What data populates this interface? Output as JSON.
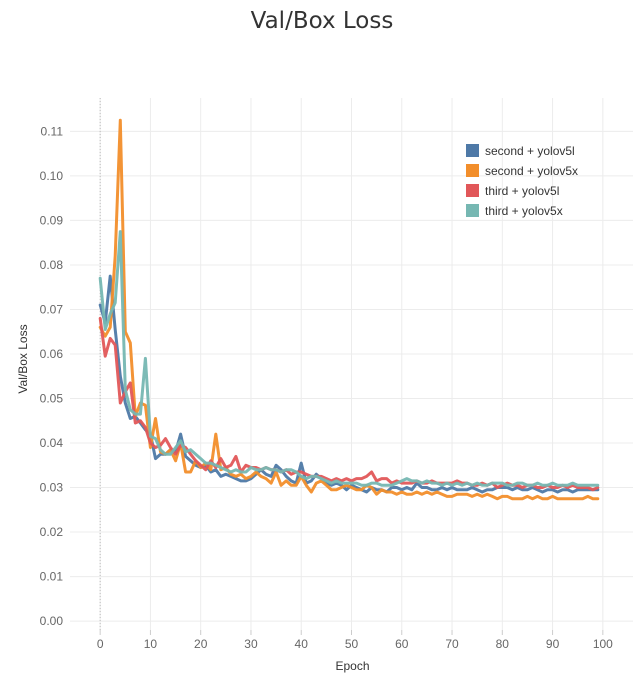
{
  "title": "Val/Box Loss",
  "chart_data": {
    "type": "line",
    "title": "Val/Box Loss",
    "xlabel": "Epoch",
    "ylabel": "Val/Box Loss",
    "xlim": [
      -6,
      106
    ],
    "ylim": [
      -0.002,
      0.1175
    ],
    "x_ticks": [
      0,
      10,
      20,
      30,
      40,
      50,
      60,
      70,
      80,
      90,
      100
    ],
    "y_ticks": [
      0.0,
      0.01,
      0.02,
      0.03,
      0.04,
      0.05,
      0.06,
      0.07,
      0.08,
      0.09,
      0.1,
      0.11
    ],
    "grid": true,
    "legend_position": "top-right",
    "series": [
      {
        "name": "second + yolov5l",
        "color": "#4e79a7",
        "x": [
          0,
          1,
          2,
          3,
          4,
          5,
          6,
          7,
          8,
          9,
          10,
          11,
          12,
          13,
          14,
          15,
          16,
          17,
          18,
          19,
          20,
          21,
          22,
          23,
          24,
          25,
          26,
          27,
          28,
          29,
          30,
          31,
          32,
          33,
          34,
          35,
          36,
          37,
          38,
          39,
          40,
          41,
          42,
          43,
          44,
          45,
          46,
          47,
          48,
          49,
          50,
          51,
          52,
          53,
          54,
          55,
          56,
          57,
          58,
          59,
          60,
          61,
          62,
          63,
          64,
          65,
          66,
          67,
          68,
          69,
          70,
          71,
          72,
          73,
          74,
          75,
          76,
          77,
          78,
          79,
          80,
          81,
          82,
          83,
          84,
          85,
          86,
          87,
          88,
          89,
          90,
          91,
          92,
          93,
          94,
          95,
          96,
          97,
          98,
          99
        ],
        "values": [
          0.071,
          0.067,
          0.0775,
          0.0655,
          0.055,
          0.049,
          0.0455,
          0.046,
          0.0445,
          0.043,
          0.042,
          0.0365,
          0.0375,
          0.0375,
          0.0385,
          0.038,
          0.042,
          0.037,
          0.036,
          0.035,
          0.0345,
          0.035,
          0.0335,
          0.034,
          0.0325,
          0.033,
          0.0325,
          0.032,
          0.0315,
          0.0315,
          0.032,
          0.033,
          0.034,
          0.033,
          0.0325,
          0.035,
          0.034,
          0.0325,
          0.0315,
          0.031,
          0.0355,
          0.031,
          0.0315,
          0.033,
          0.032,
          0.031,
          0.0305,
          0.031,
          0.0305,
          0.0295,
          0.0305,
          0.03,
          0.0295,
          0.029,
          0.03,
          0.0295,
          0.0295,
          0.029,
          0.03,
          0.03,
          0.0295,
          0.03,
          0.0295,
          0.031,
          0.03,
          0.03,
          0.0295,
          0.0295,
          0.03,
          0.0295,
          0.03,
          0.0295,
          0.0295,
          0.0295,
          0.03,
          0.0295,
          0.029,
          0.0295,
          0.0295,
          0.03,
          0.03,
          0.03,
          0.0295,
          0.03,
          0.0295,
          0.0295,
          0.03,
          0.0295,
          0.029,
          0.0295,
          0.0295,
          0.029,
          0.0295,
          0.0295,
          0.029,
          0.0295,
          0.0295,
          0.0295,
          0.0295,
          0.0295
        ]
      },
      {
        "name": "second + yolov5x",
        "color": "#f28e2b",
        "x": [
          0,
          1,
          2,
          3,
          4,
          5,
          6,
          7,
          8,
          9,
          10,
          11,
          12,
          13,
          14,
          15,
          16,
          17,
          18,
          19,
          20,
          21,
          22,
          23,
          24,
          25,
          26,
          27,
          28,
          29,
          30,
          31,
          32,
          33,
          34,
          35,
          36,
          37,
          38,
          39,
          40,
          41,
          42,
          43,
          44,
          45,
          46,
          47,
          48,
          49,
          50,
          51,
          52,
          53,
          54,
          55,
          56,
          57,
          58,
          59,
          60,
          61,
          62,
          63,
          64,
          65,
          66,
          67,
          68,
          69,
          70,
          71,
          72,
          73,
          74,
          75,
          76,
          77,
          78,
          79,
          80,
          81,
          82,
          83,
          84,
          85,
          86,
          87,
          88,
          89,
          90,
          91,
          92,
          93,
          94,
          95,
          96,
          97,
          98,
          99
        ],
        "values": [
          0.066,
          0.064,
          0.066,
          0.082,
          0.1125,
          0.065,
          0.0625,
          0.046,
          0.049,
          0.0485,
          0.039,
          0.0455,
          0.038,
          0.0375,
          0.0385,
          0.036,
          0.04,
          0.0335,
          0.0335,
          0.036,
          0.0345,
          0.0355,
          0.034,
          0.042,
          0.034,
          0.0345,
          0.033,
          0.0325,
          0.033,
          0.032,
          0.0325,
          0.0335,
          0.0325,
          0.032,
          0.031,
          0.0335,
          0.0305,
          0.0315,
          0.0305,
          0.0305,
          0.0325,
          0.0305,
          0.029,
          0.031,
          0.0315,
          0.0305,
          0.0295,
          0.0295,
          0.03,
          0.0305,
          0.03,
          0.0295,
          0.0295,
          0.0305,
          0.03,
          0.0285,
          0.0295,
          0.029,
          0.029,
          0.0285,
          0.029,
          0.0285,
          0.0285,
          0.029,
          0.0285,
          0.029,
          0.0285,
          0.029,
          0.0285,
          0.028,
          0.028,
          0.0285,
          0.0285,
          0.0285,
          0.028,
          0.0285,
          0.028,
          0.0285,
          0.028,
          0.0275,
          0.028,
          0.028,
          0.0275,
          0.0275,
          0.0275,
          0.028,
          0.0275,
          0.028,
          0.0275,
          0.0275,
          0.028,
          0.0275,
          0.0275,
          0.0275,
          0.0275,
          0.0275,
          0.0275,
          0.028,
          0.0275,
          0.0275
        ]
      },
      {
        "name": "third + yolov5l",
        "color": "#e15759",
        "x": [
          0,
          1,
          2,
          3,
          4,
          5,
          6,
          7,
          8,
          9,
          10,
          11,
          12,
          13,
          14,
          15,
          16,
          17,
          18,
          19,
          20,
          21,
          22,
          23,
          24,
          25,
          26,
          27,
          28,
          29,
          30,
          31,
          32,
          33,
          34,
          35,
          36,
          37,
          38,
          39,
          40,
          41,
          42,
          43,
          44,
          45,
          46,
          47,
          48,
          49,
          50,
          51,
          52,
          53,
          54,
          55,
          56,
          57,
          58,
          59,
          60,
          61,
          62,
          63,
          64,
          65,
          66,
          67,
          68,
          69,
          70,
          71,
          72,
          73,
          74,
          75,
          76,
          77,
          78,
          79,
          80,
          81,
          82,
          83,
          84,
          85,
          86,
          87,
          88,
          89,
          90,
          91,
          92,
          93,
          94,
          95,
          96,
          97,
          98,
          99
        ],
        "values": [
          0.068,
          0.0595,
          0.0635,
          0.062,
          0.049,
          0.0515,
          0.0535,
          0.0445,
          0.045,
          0.0435,
          0.04,
          0.039,
          0.0395,
          0.041,
          0.039,
          0.0375,
          0.0395,
          0.039,
          0.0375,
          0.036,
          0.035,
          0.034,
          0.036,
          0.0345,
          0.0365,
          0.0345,
          0.035,
          0.037,
          0.0335,
          0.035,
          0.0345,
          0.0345,
          0.034,
          0.0345,
          0.034,
          0.034,
          0.0335,
          0.034,
          0.033,
          0.0335,
          0.0335,
          0.033,
          0.0325,
          0.0325,
          0.0325,
          0.032,
          0.0315,
          0.032,
          0.0315,
          0.032,
          0.0315,
          0.032,
          0.032,
          0.0325,
          0.0335,
          0.0315,
          0.032,
          0.032,
          0.031,
          0.0315,
          0.031,
          0.031,
          0.031,
          0.0315,
          0.031,
          0.031,
          0.0315,
          0.031,
          0.031,
          0.031,
          0.031,
          0.0315,
          0.031,
          0.031,
          0.0305,
          0.0305,
          0.031,
          0.0305,
          0.031,
          0.03,
          0.0305,
          0.031,
          0.0305,
          0.0305,
          0.03,
          0.0305,
          0.0305,
          0.03,
          0.03,
          0.0305,
          0.03,
          0.03,
          0.0305,
          0.03,
          0.0305,
          0.03,
          0.03,
          0.03,
          0.0295,
          0.03
        ]
      },
      {
        "name": "third + yolov5x",
        "color": "#76b7b2",
        "x": [
          0,
          1,
          2,
          3,
          4,
          5,
          6,
          7,
          8,
          9,
          10,
          11,
          12,
          13,
          14,
          15,
          16,
          17,
          18,
          19,
          20,
          21,
          22,
          23,
          24,
          25,
          26,
          27,
          28,
          29,
          30,
          31,
          32,
          33,
          34,
          35,
          36,
          37,
          38,
          39,
          40,
          41,
          42,
          43,
          44,
          45,
          46,
          47,
          48,
          49,
          50,
          51,
          52,
          53,
          54,
          55,
          56,
          57,
          58,
          59,
          60,
          61,
          62,
          63,
          64,
          65,
          66,
          67,
          68,
          69,
          70,
          71,
          72,
          73,
          74,
          75,
          76,
          77,
          78,
          79,
          80,
          81,
          82,
          83,
          84,
          85,
          86,
          87,
          88,
          89,
          90,
          91,
          92,
          93,
          94,
          95,
          96,
          97,
          98,
          99
        ],
        "values": [
          0.077,
          0.0655,
          0.069,
          0.0715,
          0.0875,
          0.052,
          0.0475,
          0.0465,
          0.0465,
          0.059,
          0.0415,
          0.041,
          0.0385,
          0.0375,
          0.0375,
          0.039,
          0.0405,
          0.038,
          0.0385,
          0.0375,
          0.0365,
          0.0355,
          0.0355,
          0.035,
          0.0345,
          0.034,
          0.0335,
          0.034,
          0.0335,
          0.0335,
          0.0345,
          0.034,
          0.034,
          0.0345,
          0.034,
          0.034,
          0.0335,
          0.034,
          0.034,
          0.0335,
          0.0325,
          0.032,
          0.0325,
          0.0325,
          0.032,
          0.0315,
          0.031,
          0.0315,
          0.031,
          0.031,
          0.031,
          0.031,
          0.0305,
          0.0305,
          0.031,
          0.031,
          0.0305,
          0.0305,
          0.0305,
          0.031,
          0.0315,
          0.032,
          0.0315,
          0.0315,
          0.031,
          0.0315,
          0.031,
          0.031,
          0.0305,
          0.031,
          0.0305,
          0.031,
          0.0305,
          0.031,
          0.0305,
          0.031,
          0.0305,
          0.0305,
          0.031,
          0.031,
          0.031,
          0.0305,
          0.0305,
          0.031,
          0.031,
          0.0305,
          0.0305,
          0.031,
          0.0305,
          0.0305,
          0.031,
          0.0305,
          0.0305,
          0.0305,
          0.031,
          0.0305,
          0.0305,
          0.0305,
          0.0305,
          0.0305
        ]
      }
    ]
  }
}
